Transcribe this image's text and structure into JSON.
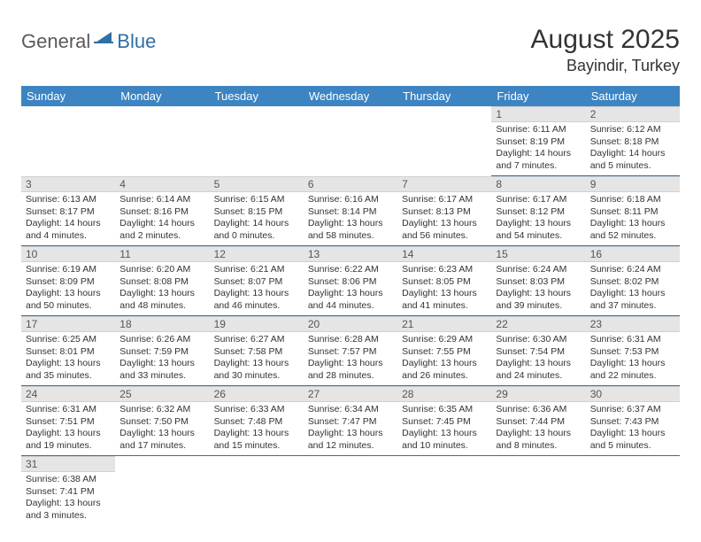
{
  "logo": {
    "general": "General",
    "blue": "Blue"
  },
  "title": "August 2025",
  "location": "Bayindir, Turkey",
  "colors": {
    "header_bg": "#3d84c3",
    "header_text": "#ffffff",
    "cell_divider": "#2f6fa6",
    "daybar_bg": "#e5e5e5",
    "text": "#333333",
    "logo_grey": "#5a5a5a",
    "logo_blue": "#2f6fa6"
  },
  "weekdays": [
    "Sunday",
    "Monday",
    "Tuesday",
    "Wednesday",
    "Thursday",
    "Friday",
    "Saturday"
  ],
  "weeks": [
    [
      null,
      null,
      null,
      null,
      null,
      {
        "n": "1",
        "sr": "6:11 AM",
        "ss": "8:19 PM",
        "dl": "14 hours and 7 minutes."
      },
      {
        "n": "2",
        "sr": "6:12 AM",
        "ss": "8:18 PM",
        "dl": "14 hours and 5 minutes."
      }
    ],
    [
      {
        "n": "3",
        "sr": "6:13 AM",
        "ss": "8:17 PM",
        "dl": "14 hours and 4 minutes."
      },
      {
        "n": "4",
        "sr": "6:14 AM",
        "ss": "8:16 PM",
        "dl": "14 hours and 2 minutes."
      },
      {
        "n": "5",
        "sr": "6:15 AM",
        "ss": "8:15 PM",
        "dl": "14 hours and 0 minutes."
      },
      {
        "n": "6",
        "sr": "6:16 AM",
        "ss": "8:14 PM",
        "dl": "13 hours and 58 minutes."
      },
      {
        "n": "7",
        "sr": "6:17 AM",
        "ss": "8:13 PM",
        "dl": "13 hours and 56 minutes."
      },
      {
        "n": "8",
        "sr": "6:17 AM",
        "ss": "8:12 PM",
        "dl": "13 hours and 54 minutes."
      },
      {
        "n": "9",
        "sr": "6:18 AM",
        "ss": "8:11 PM",
        "dl": "13 hours and 52 minutes."
      }
    ],
    [
      {
        "n": "10",
        "sr": "6:19 AM",
        "ss": "8:09 PM",
        "dl": "13 hours and 50 minutes."
      },
      {
        "n": "11",
        "sr": "6:20 AM",
        "ss": "8:08 PM",
        "dl": "13 hours and 48 minutes."
      },
      {
        "n": "12",
        "sr": "6:21 AM",
        "ss": "8:07 PM",
        "dl": "13 hours and 46 minutes."
      },
      {
        "n": "13",
        "sr": "6:22 AM",
        "ss": "8:06 PM",
        "dl": "13 hours and 44 minutes."
      },
      {
        "n": "14",
        "sr": "6:23 AM",
        "ss": "8:05 PM",
        "dl": "13 hours and 41 minutes."
      },
      {
        "n": "15",
        "sr": "6:24 AM",
        "ss": "8:03 PM",
        "dl": "13 hours and 39 minutes."
      },
      {
        "n": "16",
        "sr": "6:24 AM",
        "ss": "8:02 PM",
        "dl": "13 hours and 37 minutes."
      }
    ],
    [
      {
        "n": "17",
        "sr": "6:25 AM",
        "ss": "8:01 PM",
        "dl": "13 hours and 35 minutes."
      },
      {
        "n": "18",
        "sr": "6:26 AM",
        "ss": "7:59 PM",
        "dl": "13 hours and 33 minutes."
      },
      {
        "n": "19",
        "sr": "6:27 AM",
        "ss": "7:58 PM",
        "dl": "13 hours and 30 minutes."
      },
      {
        "n": "20",
        "sr": "6:28 AM",
        "ss": "7:57 PM",
        "dl": "13 hours and 28 minutes."
      },
      {
        "n": "21",
        "sr": "6:29 AM",
        "ss": "7:55 PM",
        "dl": "13 hours and 26 minutes."
      },
      {
        "n": "22",
        "sr": "6:30 AM",
        "ss": "7:54 PM",
        "dl": "13 hours and 24 minutes."
      },
      {
        "n": "23",
        "sr": "6:31 AM",
        "ss": "7:53 PM",
        "dl": "13 hours and 22 minutes."
      }
    ],
    [
      {
        "n": "24",
        "sr": "6:31 AM",
        "ss": "7:51 PM",
        "dl": "13 hours and 19 minutes."
      },
      {
        "n": "25",
        "sr": "6:32 AM",
        "ss": "7:50 PM",
        "dl": "13 hours and 17 minutes."
      },
      {
        "n": "26",
        "sr": "6:33 AM",
        "ss": "7:48 PM",
        "dl": "13 hours and 15 minutes."
      },
      {
        "n": "27",
        "sr": "6:34 AM",
        "ss": "7:47 PM",
        "dl": "13 hours and 12 minutes."
      },
      {
        "n": "28",
        "sr": "6:35 AM",
        "ss": "7:45 PM",
        "dl": "13 hours and 10 minutes."
      },
      {
        "n": "29",
        "sr": "6:36 AM",
        "ss": "7:44 PM",
        "dl": "13 hours and 8 minutes."
      },
      {
        "n": "30",
        "sr": "6:37 AM",
        "ss": "7:43 PM",
        "dl": "13 hours and 5 minutes."
      }
    ],
    [
      {
        "n": "31",
        "sr": "6:38 AM",
        "ss": "7:41 PM",
        "dl": "13 hours and 3 minutes."
      },
      null,
      null,
      null,
      null,
      null,
      null
    ]
  ],
  "labels": {
    "sunrise": "Sunrise: ",
    "sunset": "Sunset: ",
    "daylight": "Daylight: "
  }
}
